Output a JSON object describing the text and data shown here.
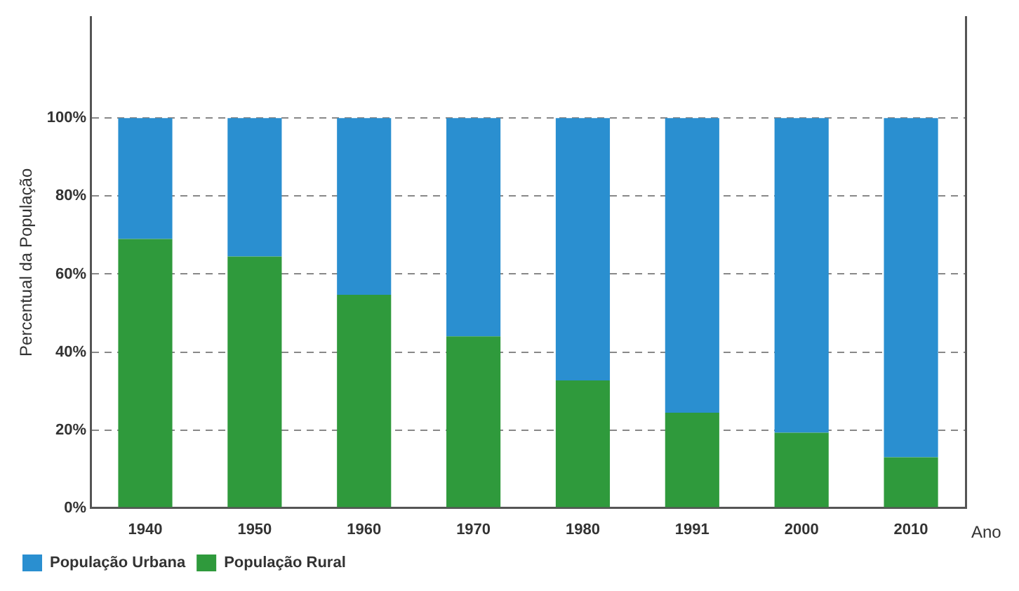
{
  "chart_data": {
    "type": "bar",
    "stacked": true,
    "ylabel": "Percentual da População",
    "xlabel": "Ano",
    "categories": [
      "1940",
      "1950",
      "1960",
      "1970",
      "1980",
      "1991",
      "2000",
      "2010"
    ],
    "series": [
      {
        "name": "População Rural",
        "color": "#2f9a3c",
        "values": [
          69,
          64.5,
          54.7,
          44,
          32.7,
          24.4,
          19.3,
          13
        ]
      },
      {
        "name": "População Urbana",
        "color": "#2a8fd0",
        "values": [
          31,
          35.5,
          45.3,
          56,
          67.3,
          75.6,
          80.7,
          87
        ]
      }
    ],
    "ylim": [
      0,
      126
    ],
    "yticks": [
      {
        "value": 0,
        "label": "0%"
      },
      {
        "value": 20,
        "label": "20%"
      },
      {
        "value": 40,
        "label": "40%"
      },
      {
        "value": 60,
        "label": "60%"
      },
      {
        "value": 80,
        "label": "80%"
      },
      {
        "value": 100,
        "label": "100%"
      }
    ],
    "grid": "y",
    "legend": "bottom left"
  }
}
